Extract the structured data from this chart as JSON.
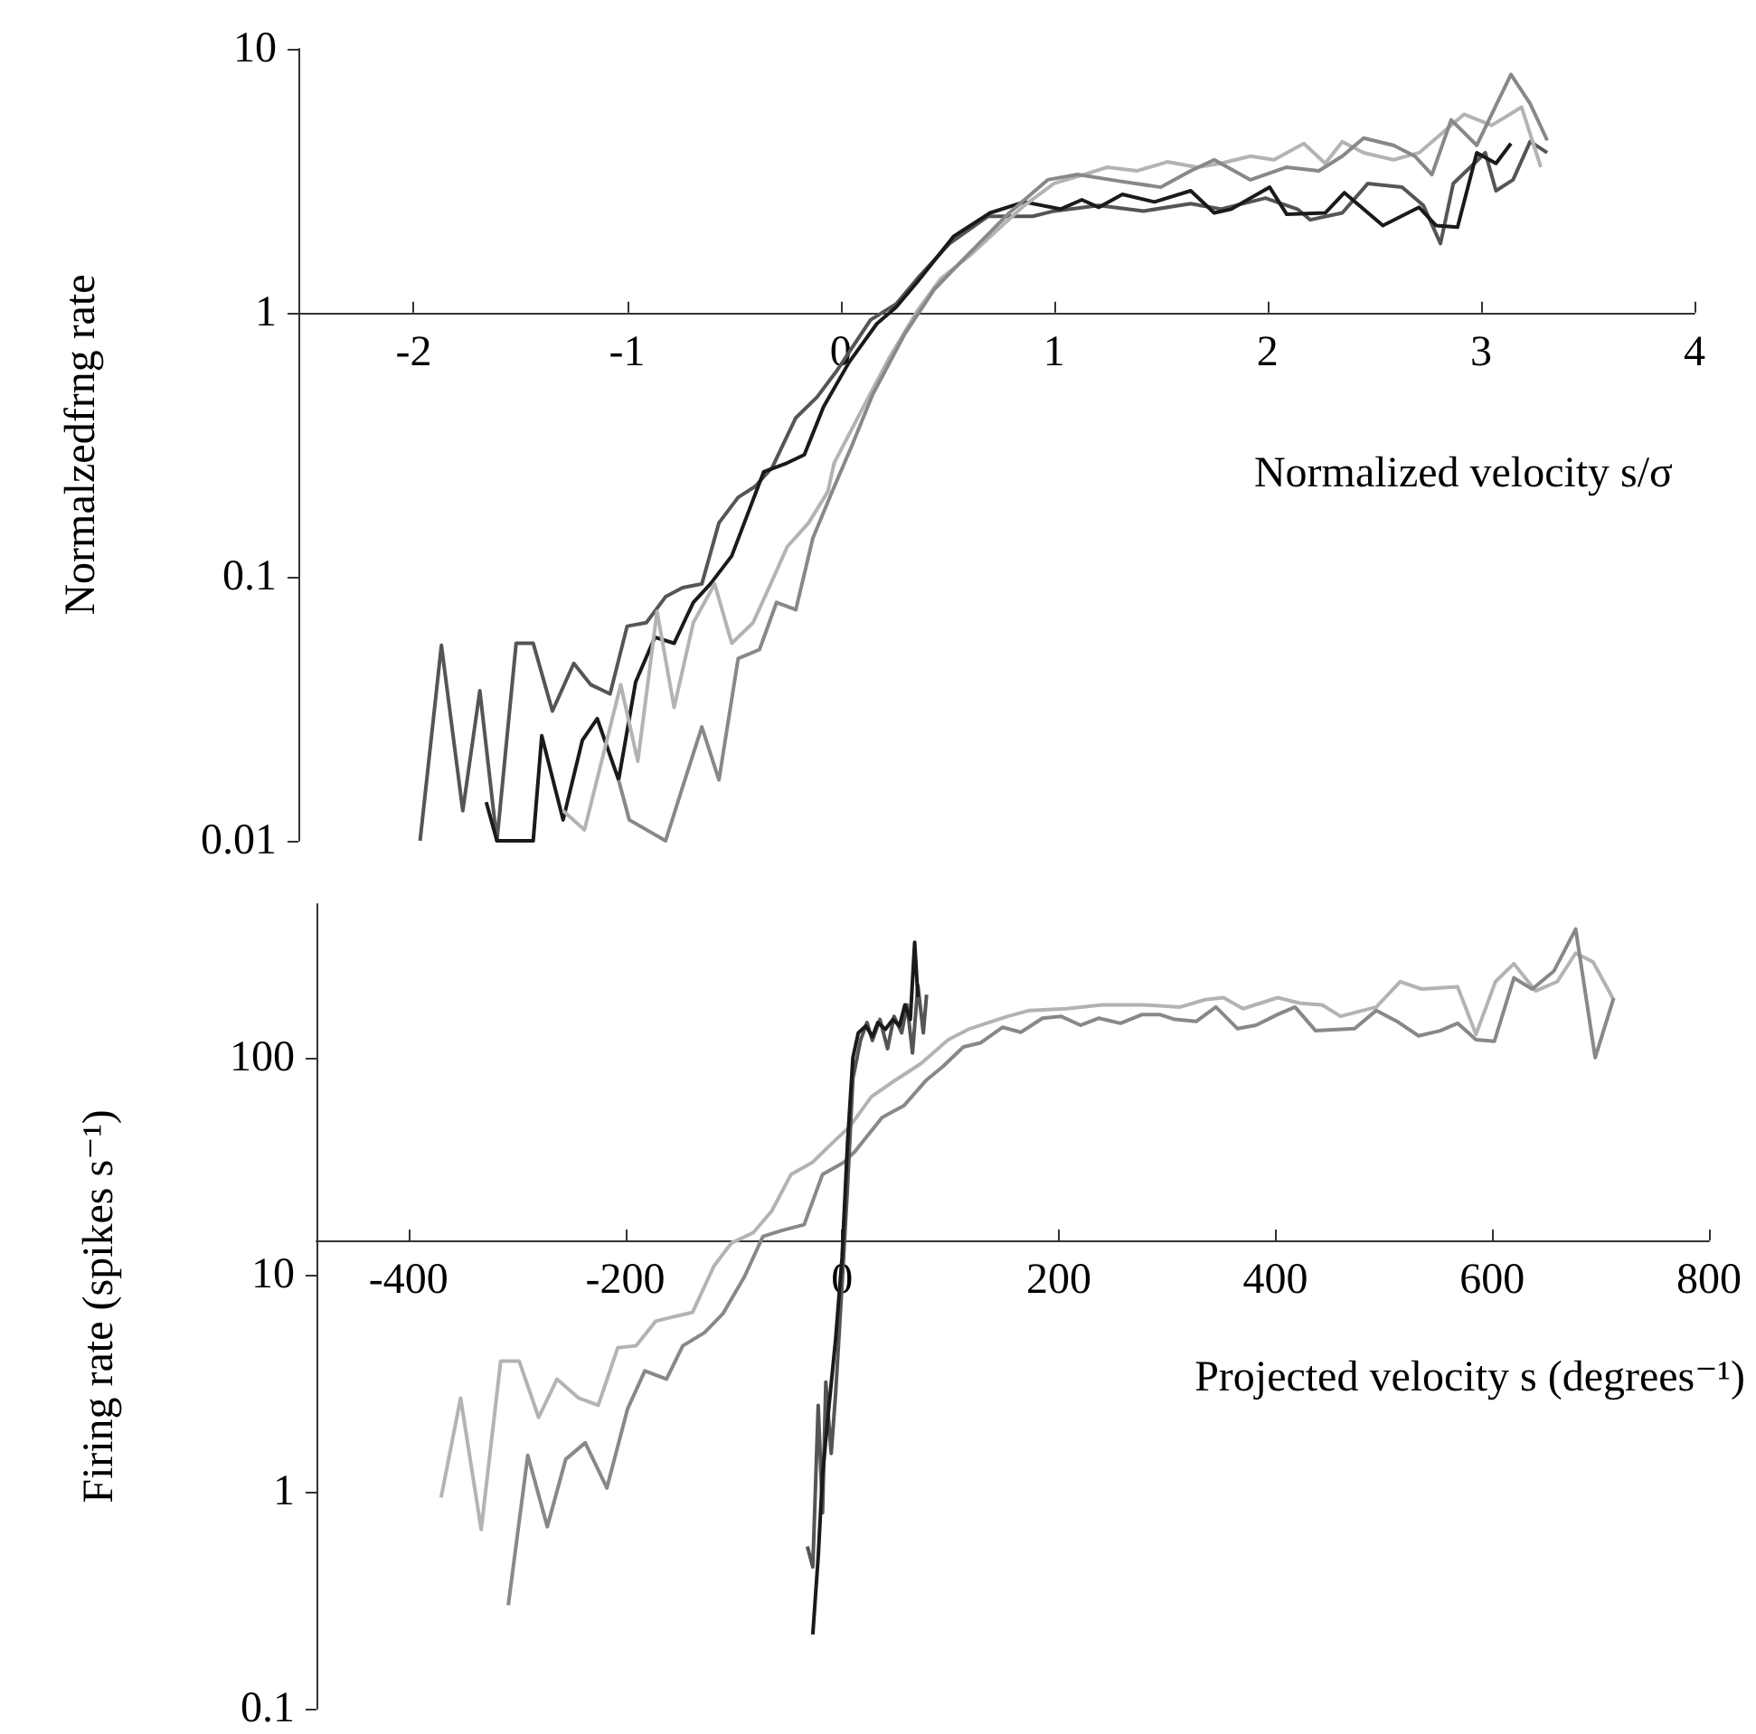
{
  "chart_data": [
    {
      "type": "line",
      "xlabel": "Normalized velocity s/σ",
      "ylabel": "Normalzedfrng rate",
      "log": "y",
      "xlim": [
        -2.54,
        4
      ],
      "xticks": [
        -2,
        -1,
        0,
        1,
        2,
        3,
        4
      ],
      "ylim": [
        0.01,
        10
      ],
      "yticks": [
        0.01,
        0.1,
        1,
        10
      ],
      "series": [
        {
          "color": "#555555",
          "x": [
            -1.97,
            -1.87,
            -1.77,
            -1.69,
            -1.61,
            -1.52,
            -1.44,
            -1.35,
            -1.25,
            -1.17,
            -1.08,
            -1.0,
            -0.91,
            -0.82,
            -0.74,
            -0.65,
            -0.57,
            -0.48,
            -0.4,
            -0.32,
            -0.21,
            -0.11,
            -0.02,
            0.14,
            0.26,
            0.36,
            0.51,
            0.69,
            0.9,
            1.0,
            1.21,
            1.42,
            1.64,
            1.78,
            1.99,
            2.14,
            2.2,
            2.35,
            2.47,
            2.63,
            2.73,
            2.81,
            2.87,
            3.02,
            3.07,
            3.15,
            3.23,
            3.31
          ],
          "values": [
            0.01,
            0.055,
            0.013,
            0.037,
            0.01,
            0.056,
            0.056,
            0.031,
            0.047,
            0.039,
            0.036,
            0.065,
            0.067,
            0.084,
            0.091,
            0.094,
            0.16,
            0.2,
            0.22,
            0.26,
            0.4,
            0.48,
            0.6,
            0.94,
            1.08,
            1.35,
            1.83,
            2.32,
            2.32,
            2.43,
            2.55,
            2.43,
            2.59,
            2.47,
            2.72,
            2.47,
            2.25,
            2.39,
            3.09,
            2.99,
            2.55,
            1.83,
            3.09,
            4.04,
            2.9,
            3.19,
            4.45,
            4.04
          ]
        },
        {
          "color": "#1a1a1a",
          "x": [
            -1.66,
            -1.61,
            -1.44,
            -1.4,
            -1.3,
            -1.21,
            -1.14,
            -1.04,
            -0.96,
            -0.87,
            -0.78,
            -0.69,
            -0.61,
            -0.51,
            -0.36,
            -0.25,
            -0.17,
            -0.08,
            0.04,
            0.17,
            0.26,
            0.36,
            0.53,
            0.7,
            0.86,
            1.03,
            1.13,
            1.21,
            1.32,
            1.47,
            1.64,
            1.75,
            1.83,
            2.01,
            2.09,
            2.27,
            2.36,
            2.54,
            2.71,
            2.79,
            2.89,
            2.98,
            3.07,
            3.14
          ],
          "values": [
            0.014,
            0.01,
            0.01,
            0.025,
            0.012,
            0.024,
            0.029,
            0.017,
            0.04,
            0.059,
            0.056,
            0.08,
            0.094,
            0.12,
            0.25,
            0.27,
            0.29,
            0.44,
            0.65,
            0.91,
            1.05,
            1.31,
            1.95,
            2.39,
            2.63,
            2.47,
            2.68,
            2.51,
            2.81,
            2.63,
            2.9,
            2.39,
            2.47,
            2.99,
            2.36,
            2.39,
            2.85,
            2.14,
            2.51,
            2.14,
            2.11,
            4.04,
            3.68,
            4.38
          ]
        },
        {
          "color": "#b3b3b3",
          "x": [
            -1.3,
            -1.2,
            -1.03,
            -0.95,
            -0.86,
            -0.78,
            -0.69,
            -0.59,
            -0.51,
            -0.41,
            -0.32,
            -0.25,
            -0.15,
            -0.06,
            -0.03,
            0.08,
            0.23,
            0.36,
            0.47,
            0.61,
            0.72,
            0.86,
            1.0,
            1.14,
            1.25,
            1.39,
            1.53,
            1.67,
            1.78,
            1.92,
            2.03,
            2.17,
            2.27,
            2.35,
            2.45,
            2.59,
            2.71,
            2.84,
            2.92,
            3.05,
            3.19,
            3.28
          ],
          "values": [
            0.013,
            0.011,
            0.039,
            0.02,
            0.074,
            0.032,
            0.067,
            0.094,
            0.056,
            0.067,
            0.097,
            0.13,
            0.16,
            0.21,
            0.27,
            0.4,
            0.68,
            1.02,
            1.35,
            1.66,
            2.01,
            2.55,
            3.09,
            3.34,
            3.56,
            3.45,
            3.73,
            3.56,
            3.68,
            3.92,
            3.8,
            4.38,
            3.68,
            4.45,
            4.04,
            3.8,
            4.04,
            4.97,
            5.65,
            5.13,
            6.01,
            3.56
          ]
        },
        {
          "color": "#888888",
          "x": [
            -1.04,
            -0.99,
            -0.82,
            -0.74,
            -0.65,
            -0.57,
            -0.48,
            -0.38,
            -0.3,
            -0.21,
            -0.13,
            -0.04,
            0.05,
            0.15,
            0.3,
            0.44,
            0.58,
            0.79,
            0.97,
            1.11,
            1.32,
            1.5,
            1.64,
            1.75,
            1.92,
            2.09,
            2.24,
            2.35,
            2.45,
            2.59,
            2.69,
            2.77,
            2.86,
            2.98,
            3.05,
            3.14,
            3.23,
            3.31
          ],
          "values": [
            0.017,
            0.012,
            0.01,
            0.016,
            0.027,
            0.017,
            0.049,
            0.053,
            0.08,
            0.075,
            0.14,
            0.21,
            0.31,
            0.49,
            0.83,
            1.23,
            1.61,
            2.39,
            3.19,
            3.34,
            3.14,
            2.99,
            3.45,
            3.8,
            3.19,
            3.56,
            3.45,
            3.92,
            4.59,
            4.31,
            3.92,
            3.34,
            5.38,
            4.31,
            5.65,
            8.0,
            6.2,
            4.5
          ]
        }
      ]
    },
    {
      "type": "line",
      "xlabel": "Projected velocity s (degrees⁻¹)",
      "ylabel": "Firing rate (spikes s⁻¹)",
      "log": "y",
      "xlim": [
        -485,
        800
      ],
      "xticks": [
        -400,
        -200,
        0,
        200,
        400,
        600,
        800
      ],
      "ylim": [
        0.1,
        510
      ],
      "yticks": [
        0.1,
        1,
        10,
        100
      ],
      "series": [
        {
          "color": "#b3b3b3",
          "x": [
            -370,
            -352,
            -333,
            -315,
            -298,
            -280,
            -263,
            -243,
            -225,
            -207,
            -190,
            -172,
            -155,
            -138,
            -118,
            -102,
            -82,
            -65,
            -47,
            -27,
            -10,
            7,
            27,
            48,
            73,
            98,
            118,
            153,
            173,
            207,
            240,
            278,
            312,
            335,
            352,
            370,
            402,
            423,
            443,
            460,
            493,
            515,
            535,
            568,
            585,
            603,
            620,
            640,
            660,
            677,
            693,
            712
          ],
          "values": [
            0.94,
            2.7,
            0.67,
            4.0,
            4.0,
            2.2,
            3.3,
            2.7,
            2.5,
            4.6,
            4.7,
            6.1,
            6.4,
            6.7,
            11,
            14,
            15.6,
            19.6,
            29,
            33,
            40,
            48,
            66,
            78,
            94,
            121,
            136,
            155,
            165,
            168,
            175,
            175,
            171,
            185,
            189,
            168,
            189,
            178,
            175,
            155,
            171,
            224,
            207,
            212,
            128,
            224,
            271,
            203,
            224,
            303,
            276,
            185
          ]
        },
        {
          "color": "#888888",
          "x": [
            -308,
            -290,
            -272,
            -255,
            -237,
            -217,
            -198,
            -182,
            -162,
            -147,
            -127,
            -110,
            -90,
            -73,
            -55,
            -35,
            -18,
            2,
            12,
            37,
            57,
            78,
            93,
            112,
            128,
            148,
            165,
            185,
            202,
            220,
            237,
            257,
            277,
            293,
            307,
            327,
            345,
            365,
            382,
            402,
            418,
            437,
            473,
            493,
            512,
            532,
            552,
            568,
            585,
            602,
            620,
            637,
            657,
            677,
            695,
            712
          ],
          "values": [
            0.3,
            1.47,
            0.69,
            1.41,
            1.68,
            1.04,
            2.4,
            3.6,
            3.3,
            4.7,
            5.4,
            6.6,
            9.8,
            15,
            16,
            17,
            29,
            33,
            37,
            53,
            60,
            79,
            91,
            112,
            117,
            138,
            131,
            152,
            155,
            141,
            152,
            144,
            158,
            158,
            150,
            147,
            171,
            136,
            141,
            158,
            171,
            133,
            136,
            165,
            147,
            126,
            133,
            144,
            121,
            119,
            233,
            207,
            251,
            391,
            100,
            188
          ]
        },
        {
          "color": "#555555",
          "x": [
            -32,
            -27,
            -22,
            -18,
            -15,
            -10,
            -6,
            0,
            5,
            10,
            17,
            23,
            28,
            35,
            42,
            48,
            55,
            60,
            65,
            70,
            75,
            78
          ],
          "values": [
            0.56,
            0.45,
            2.5,
            0.8,
            3.2,
            1.5,
            2.8,
            9,
            25,
            80,
            120,
            145,
            120,
            150,
            110,
            155,
            130,
            175,
            105,
            215,
            130,
            195
          ]
        },
        {
          "color": "#1a1a1a",
          "x": [
            -27,
            -22,
            -18,
            -12,
            -6,
            0,
            5,
            10,
            15,
            22,
            28,
            33,
            40,
            47,
            53,
            58,
            63,
            67,
            70
          ],
          "values": [
            0.22,
            0.5,
            1.2,
            2.5,
            5,
            12,
            40,
            100,
            130,
            140,
            125,
            145,
            135,
            150,
            140,
            175,
            150,
            340,
            190
          ]
        }
      ]
    }
  ]
}
